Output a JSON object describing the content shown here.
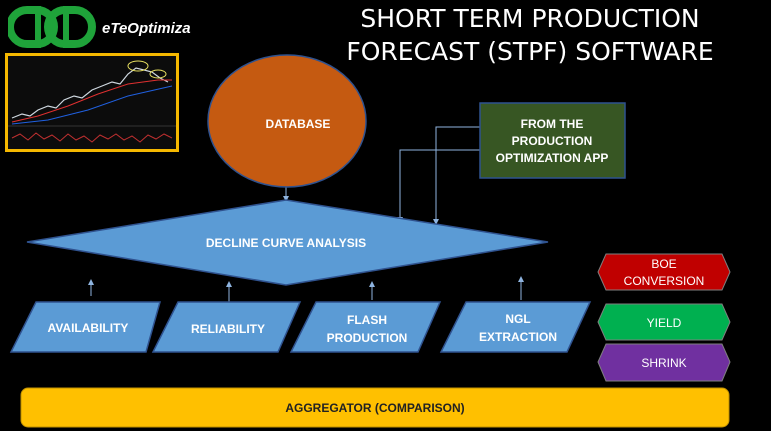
{
  "brand": {
    "name": "eTeOptimiza"
  },
  "title": {
    "line1": "SHORT TERM PRODUCTION",
    "line2": "FORECAST (STPF) SOFTWARE"
  },
  "nodes": {
    "database": "DATABASE",
    "app_line1": "FROM THE",
    "app_line2": "PRODUCTION",
    "app_line3": "OPTIMIZATION APP",
    "decline": "DECLINE CURVE ANALYSIS",
    "availability": "AVAILABILITY",
    "reliability": "RELIABILITY",
    "flash_line1": "FLASH",
    "flash_line2": "PRODUCTION",
    "ngl_line1": "NGL",
    "ngl_line2": "EXTRACTION",
    "boe_line1": "BOE",
    "boe_line2": "CONVERSION",
    "yield": "YIELD",
    "shrink": "SHRINK",
    "aggregator": "AGGREGATOR (COMPARISON)"
  },
  "colors": {
    "database": "#c55a11",
    "app": "#375623",
    "process": "#5b9bd5",
    "boe": "#c00000",
    "yield": "#00b050",
    "shrink": "#7030a0",
    "aggregator": "#ffc000"
  }
}
